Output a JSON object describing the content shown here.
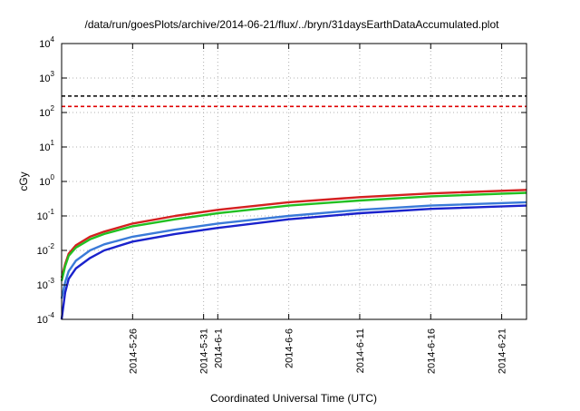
{
  "chart_data": {
    "type": "line",
    "title": "/data/run/goesPlots/archive/2014-06-21/flux/../bryn/31daysEarthDataAccumulated.plot",
    "xlabel": "Coordinated Universal Time (UTC)",
    "ylabel": "cGy",
    "y_scale": "log",
    "ylim": [
      0.0001,
      10000
    ],
    "y_ticks": [
      {
        "base": "10",
        "exp": "-4",
        "value": 0.0001
      },
      {
        "base": "10",
        "exp": "-3",
        "value": 0.001
      },
      {
        "base": "10",
        "exp": "-2",
        "value": 0.01
      },
      {
        "base": "10",
        "exp": "-1",
        "value": 0.1
      },
      {
        "base": "10",
        "exp": "0",
        "value": 1
      },
      {
        "base": "10",
        "exp": "1",
        "value": 10
      },
      {
        "base": "10",
        "exp": "2",
        "value": 100
      },
      {
        "base": "10",
        "exp": "3",
        "value": 1000
      },
      {
        "base": "10",
        "exp": "4",
        "value": 10000
      }
    ],
    "xlim": [
      "2014-05-21",
      "2014-06-22T18:00"
    ],
    "x_ticks": [
      "2014-5-26",
      "2014-5-31",
      "2014-6-1",
      "2014-6-6",
      "2014-6-11",
      "2014-6-16",
      "2014-6-21"
    ],
    "grid": true,
    "thresholds": [
      {
        "value": 300,
        "color": "#000000",
        "style": "dashed"
      },
      {
        "value": 150,
        "color": "#e00000",
        "style": "dashed"
      }
    ],
    "series": [
      {
        "color": "#d42020",
        "x": [
          "2014-05-21",
          "2014-05-21T06:00",
          "2014-05-21T12:00",
          "2014-05-22",
          "2014-05-23",
          "2014-05-24",
          "2014-05-26",
          "2014-05-29",
          "2014-06-01",
          "2014-06-06",
          "2014-06-11",
          "2014-06-16",
          "2014-06-22T18:00"
        ],
        "values": [
          0.0016,
          0.004,
          0.008,
          0.014,
          0.025,
          0.035,
          0.06,
          0.1,
          0.15,
          0.25,
          0.35,
          0.45,
          0.57
        ]
      },
      {
        "color": "#22c022",
        "x": [
          "2014-05-21",
          "2014-05-21T06:00",
          "2014-05-21T12:00",
          "2014-05-22",
          "2014-05-23",
          "2014-05-24",
          "2014-05-26",
          "2014-05-29",
          "2014-06-01",
          "2014-06-06",
          "2014-06-11",
          "2014-06-16",
          "2014-06-22T18:00"
        ],
        "values": [
          0.0013,
          0.0035,
          0.007,
          0.012,
          0.021,
          0.03,
          0.05,
          0.08,
          0.12,
          0.2,
          0.28,
          0.37,
          0.47
        ]
      },
      {
        "color": "#3a7ad8",
        "x": [
          "2014-05-21",
          "2014-05-21T06:00",
          "2014-05-21T12:00",
          "2014-05-22",
          "2014-05-23",
          "2014-05-24",
          "2014-05-26",
          "2014-05-29",
          "2014-06-01",
          "2014-06-06",
          "2014-06-11",
          "2014-06-16",
          "2014-06-22T18:00"
        ],
        "values": [
          0.0004,
          0.0012,
          0.0025,
          0.005,
          0.01,
          0.015,
          0.025,
          0.04,
          0.06,
          0.1,
          0.15,
          0.2,
          0.25
        ]
      },
      {
        "color": "#1a22cc",
        "x": [
          "2014-05-21",
          "2014-05-21T06:00",
          "2014-05-21T12:00",
          "2014-05-22",
          "2014-05-23",
          "2014-05-24",
          "2014-05-26",
          "2014-05-29",
          "2014-06-01",
          "2014-06-06",
          "2014-06-11",
          "2014-06-16",
          "2014-06-22T18:00"
        ],
        "values": [
          0.0001,
          0.0006,
          0.0015,
          0.003,
          0.006,
          0.01,
          0.018,
          0.03,
          0.045,
          0.08,
          0.12,
          0.16,
          0.2
        ]
      }
    ]
  }
}
